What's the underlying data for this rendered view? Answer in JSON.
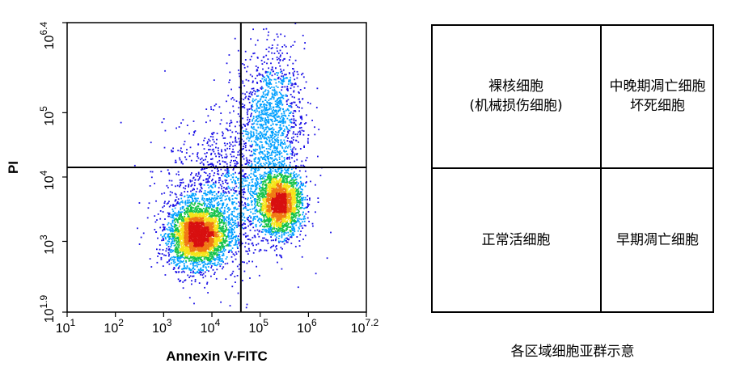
{
  "chart_data": [
    {
      "type": "scatter",
      "xlabel": "Annexin V-FITC",
      "ylabel": "PI",
      "x_scale": "log",
      "y_scale": "log",
      "xlim": [
        10,
        15848931.9
      ],
      "ylim": [
        79.43,
        2511886.4
      ],
      "x_ticks": [
        {
          "value": 10,
          "base": "10",
          "exp": "1"
        },
        {
          "value": 100,
          "base": "10",
          "exp": "2"
        },
        {
          "value": 1000,
          "base": "10",
          "exp": "3"
        },
        {
          "value": 10000,
          "base": "10",
          "exp": "4"
        },
        {
          "value": 100000,
          "base": "10",
          "exp": "5"
        },
        {
          "value": 1000000,
          "base": "10",
          "exp": "6"
        },
        {
          "value": 15848931.9,
          "base": "10",
          "exp": "7.2"
        }
      ],
      "y_ticks": [
        {
          "value": 79.43,
          "base": "10",
          "exp": "1.9"
        },
        {
          "value": 1000,
          "base": "10",
          "exp": "3"
        },
        {
          "value": 10000,
          "base": "10",
          "exp": "4"
        },
        {
          "value": 100000,
          "base": "10",
          "exp": "5"
        },
        {
          "value": 2511886.4,
          "base": "10",
          "exp": "6.4"
        }
      ],
      "quadrant_gate": {
        "x": 39810,
        "y": 14125
      },
      "populations": [
        {
          "center": [
            5012,
            1259
          ],
          "spread_decades": [
            0.3,
            0.24
          ],
          "events": 3300
        },
        {
          "center": [
            251189,
            3981
          ],
          "spread_decades": [
            0.22,
            0.24
          ],
          "events": 2400
        },
        {
          "center": [
            158489,
            79433
          ],
          "spread_decades": [
            0.35,
            0.55
          ],
          "events": 1300
        },
        {
          "center": [
            19953,
            5012
          ],
          "spread_decades": [
            0.65,
            0.55
          ],
          "events": 1400
        }
      ],
      "colormap": [
        "#1a10e6",
        "#00a0ff",
        "#16c34a",
        "#f5e41a",
        "#f07a14",
        "#d81010"
      ]
    },
    {
      "type": "table",
      "caption": "各区域细胞亚群示意",
      "quadrants": {
        "upper_left": [
          "裸核细胞",
          "(机械损伤细胞)"
        ],
        "upper_right": [
          "中晚期凋亡细胞",
          "坏死细胞"
        ],
        "lower_left": [
          "正常活细胞"
        ],
        "lower_right": [
          "早期凋亡细胞"
        ]
      }
    }
  ]
}
